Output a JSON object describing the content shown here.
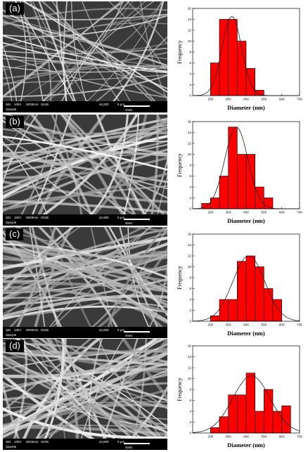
{
  "figure": {
    "panels": [
      {
        "label": "(a)",
        "sem_info": {
          "detector": "SEI",
          "voltage": "10kV",
          "wd": "WD8mm",
          "spot": "SS35",
          "mag": "x5,000",
          "scale": "5 μm",
          "code": "4046",
          "sample": "Sample"
        }
      },
      {
        "label": "(b)",
        "sem_info": {
          "detector": "SEI",
          "voltage": "10kV",
          "wd": "WD8mm",
          "spot": "SS35",
          "mag": "x5,000",
          "scale": "5 μm",
          "code": "4046",
          "sample": "Sample"
        }
      },
      {
        "label": "(c)",
        "sem_info": {
          "detector": "SEI",
          "voltage": "10kV",
          "wd": "WD8mm",
          "spot": "SS35",
          "mag": "x5,000",
          "scale": "5 μm",
          "code": "4046",
          "sample": "Sample"
        }
      },
      {
        "label": "(d)",
        "sem_info": {
          "detector": "SEI",
          "voltage": "10kV",
          "wd": "WD8mm",
          "spot": "SS35",
          "mag": "x5,000",
          "scale": "5 μm",
          "code": "4046",
          "sample": "Sample"
        }
      }
    ]
  },
  "colors": {
    "bar_fill": "#ff0000",
    "bar_stroke": "#000000",
    "curve": "#222222",
    "sem_bg": "#2b2b2b"
  },
  "chart_data": [
    {
      "type": "bar",
      "xlabel": "Diameter (nm)",
      "ylabel": "Frequency",
      "xlim": [
        100,
        700
      ],
      "ylim": [
        0,
        16
      ],
      "xticks": [
        200,
        300,
        400,
        500,
        600,
        700
      ],
      "yticks": [
        0,
        2,
        4,
        6,
        8,
        10,
        12,
        14,
        16
      ],
      "bin_width": 50,
      "bin_starts": [
        200,
        250,
        300,
        350,
        400,
        450,
        500,
        550
      ],
      "values": [
        6,
        14,
        14,
        10,
        5,
        1,
        0,
        0
      ],
      "fit_curve": {
        "type": "normal",
        "mean": 320,
        "sd": 55,
        "peak": 14.5
      },
      "grid": false
    },
    {
      "type": "bar",
      "xlabel": "Diameter (nm)",
      "ylabel": "Frequency",
      "xlim": [
        100,
        700
      ],
      "ylim": [
        0,
        16
      ],
      "xticks": [
        200,
        300,
        400,
        500,
        600,
        700
      ],
      "yticks": [
        0,
        2,
        4,
        6,
        8,
        10,
        12,
        14,
        16
      ],
      "bin_width": 50,
      "bin_starts": [
        150,
        200,
        250,
        300,
        350,
        400,
        450,
        500
      ],
      "values": [
        1,
        2,
        6,
        15,
        10,
        10,
        4,
        2
      ],
      "fit_curve": {
        "type": "normal",
        "mean": 345,
        "sd": 65,
        "peak": 15
      },
      "grid": false
    },
    {
      "type": "bar",
      "xlabel": "Diameter (nm)",
      "ylabel": "Frequency",
      "xlim": [
        100,
        700
      ],
      "ylim": [
        0,
        16
      ],
      "xticks": [
        200,
        300,
        400,
        500,
        600,
        700
      ],
      "yticks": [
        0,
        2,
        4,
        6,
        8,
        10,
        12,
        14,
        16
      ],
      "bin_width": 50,
      "bin_starts": [
        200,
        250,
        300,
        350,
        400,
        450,
        500,
        550
      ],
      "values": [
        1,
        4,
        4,
        11,
        12,
        10,
        6,
        4
      ],
      "fit_curve": {
        "type": "normal",
        "mean": 415,
        "sd": 90,
        "peak": 12
      },
      "grid": false
    },
    {
      "type": "bar",
      "xlabel": "Diameter (nm)",
      "ylabel": "Frequency",
      "xlim": [
        100,
        700
      ],
      "ylim": [
        0,
        16
      ],
      "xticks": [
        200,
        300,
        400,
        500,
        600,
        700
      ],
      "yticks": [
        0,
        2,
        4,
        6,
        8,
        10,
        12,
        14,
        16
      ],
      "bin_width": 50,
      "bin_starts": [
        200,
        250,
        300,
        350,
        400,
        450,
        500,
        550,
        600
      ],
      "values": [
        1,
        3,
        7,
        7,
        11,
        4,
        8,
        4,
        5
      ],
      "fit_curve": {
        "type": "normal",
        "mean": 430,
        "sd": 105,
        "peak": 10.5
      },
      "grid": false
    }
  ]
}
